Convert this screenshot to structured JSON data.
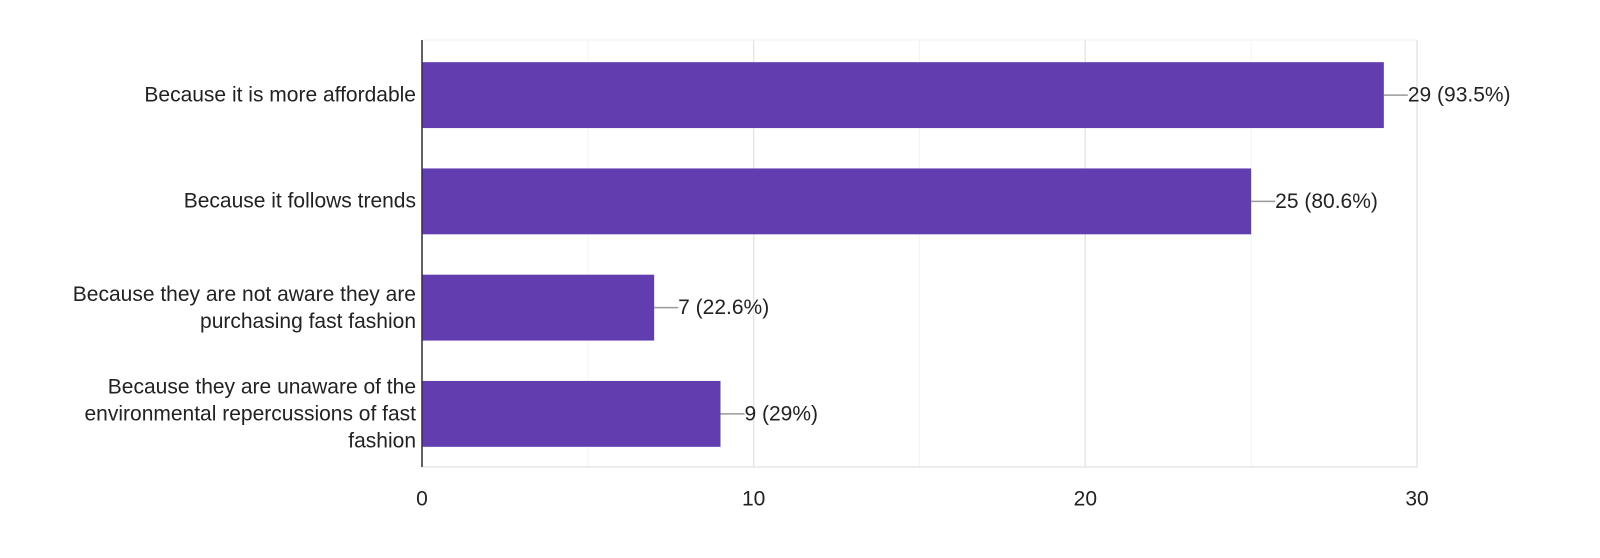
{
  "chart_data": {
    "type": "bar",
    "orientation": "horizontal",
    "categories": [
      "Because it is more affordable",
      "Because it follows trends",
      "Because they are not aware they are purchasing fast fashion",
      "Because they are unaware of the environmental repercussions of fast fashion"
    ],
    "values": [
      29,
      25,
      7,
      9
    ],
    "value_labels": [
      "29 (93.5%)",
      "25 (80.6%)",
      "7 (22.6%)",
      "9 (29%)"
    ],
    "color": "#613daf",
    "xlim": [
      0,
      30
    ],
    "xticks": [
      0,
      10,
      20,
      30
    ],
    "xminor": [
      5,
      15,
      25
    ],
    "grid": true
  }
}
